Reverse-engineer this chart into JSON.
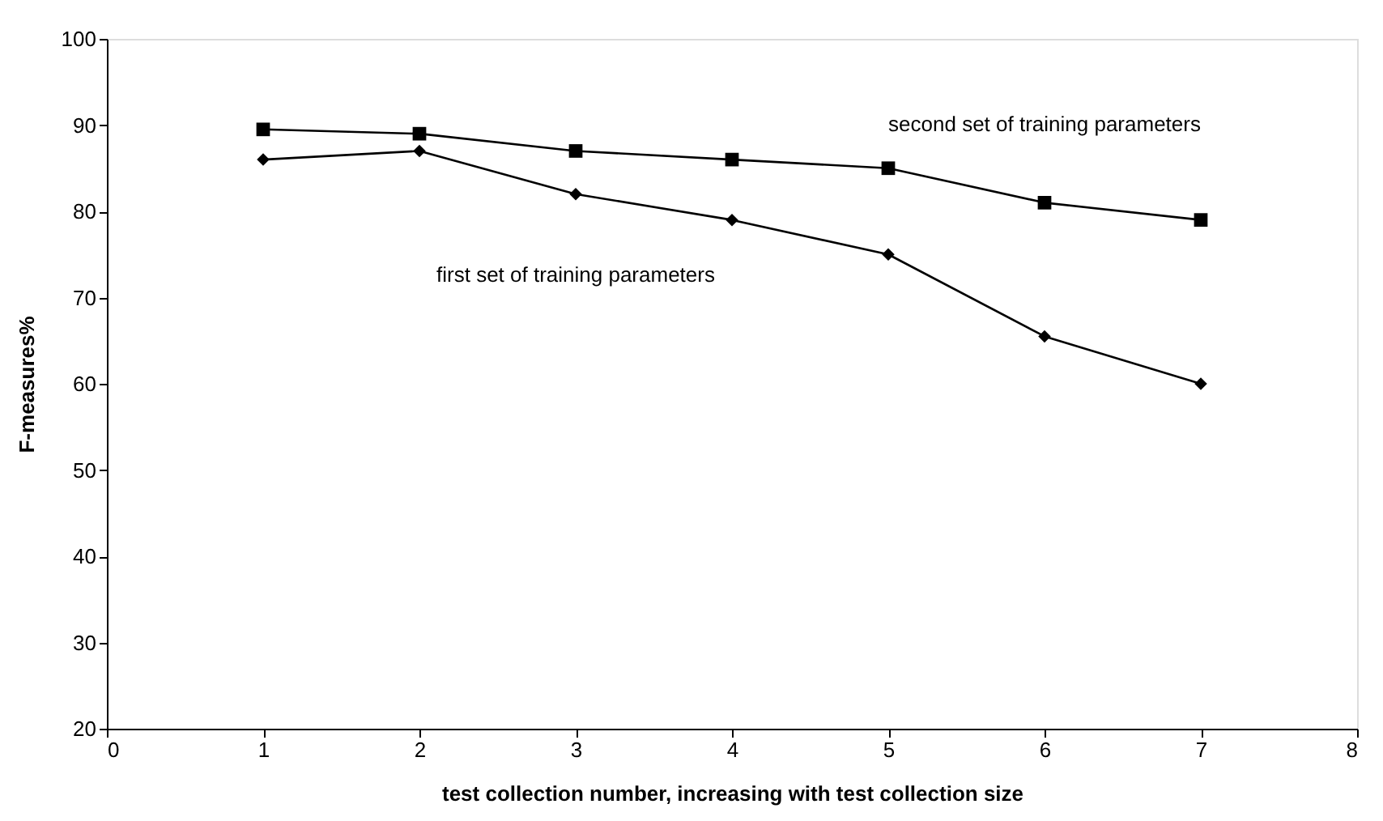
{
  "chart_data": {
    "type": "line",
    "xlabel": "test collection number, increasing with test collection size",
    "ylabel": "F-measures%",
    "x": [
      1,
      2,
      3,
      4,
      5,
      6,
      7
    ],
    "series": [
      {
        "name": "second set of training parameters",
        "color": "#000000",
        "marker": "square",
        "values": [
          89.5,
          89,
          87,
          86,
          85,
          81,
          79
        ]
      },
      {
        "name": "first set of training parameters",
        "color": "#000000",
        "marker": "diamond",
        "values": [
          86,
          87,
          82,
          79,
          75,
          65.5,
          60
        ]
      }
    ],
    "xlim": [
      0,
      8
    ],
    "xticks": [
      0,
      1,
      2,
      3,
      4,
      5,
      6,
      7,
      8
    ],
    "ylim": [
      20,
      100
    ],
    "yticks": [
      20,
      30,
      40,
      50,
      60,
      70,
      80,
      90,
      100
    ],
    "grid": false,
    "legend": false,
    "line_style": "solid"
  }
}
